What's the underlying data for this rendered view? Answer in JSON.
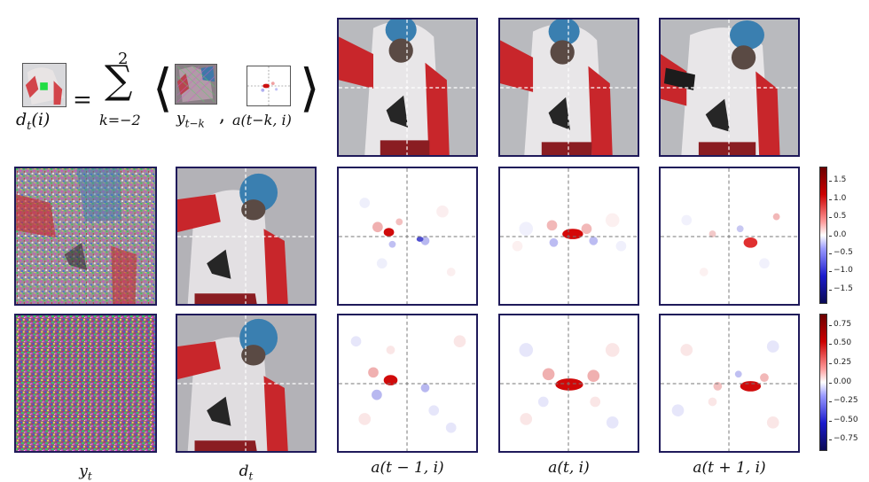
{
  "equation": {
    "lhs": "d",
    "lhs_sub": "t",
    "lhs_arg": "(i)",
    "equals": "=",
    "sum_sign": "∑",
    "sum_top": "2",
    "sum_bottom": "k=−2",
    "bracket_left": "⟨",
    "bracket_right": "⟩",
    "term1": "y",
    "term1_sub": "t−k",
    "comma": ",",
    "term2": "a(t−k, i)"
  },
  "column_labels": {
    "y_t": "y",
    "y_t_sub": "t",
    "d_t": "d",
    "d_t_sub": "t",
    "a_prev": "a(t − 1, i)",
    "a_curr": "a(t, i)",
    "a_next": "a(t + 1, i)"
  },
  "colorbar_top": {
    "ticks": [
      "1.5",
      "1.0",
      "0.5",
      "0.0",
      "−0.5",
      "−1.0",
      "−1.5"
    ],
    "vmin": -1.9,
    "vmax": 1.9
  },
  "colorbar_bottom": {
    "ticks": [
      "0.75",
      "0.50",
      "0.25",
      "0.00",
      "−0.25",
      "−0.50",
      "−0.75"
    ],
    "vmin": -0.9,
    "vmax": 0.9
  },
  "colors": {
    "frame": "#1f1a5a",
    "heat_pos": "#cc0000",
    "heat_neg": "#1a1aa8",
    "jersey_red": "#c8262b",
    "helmet_blue": "#3a7fb0"
  }
}
